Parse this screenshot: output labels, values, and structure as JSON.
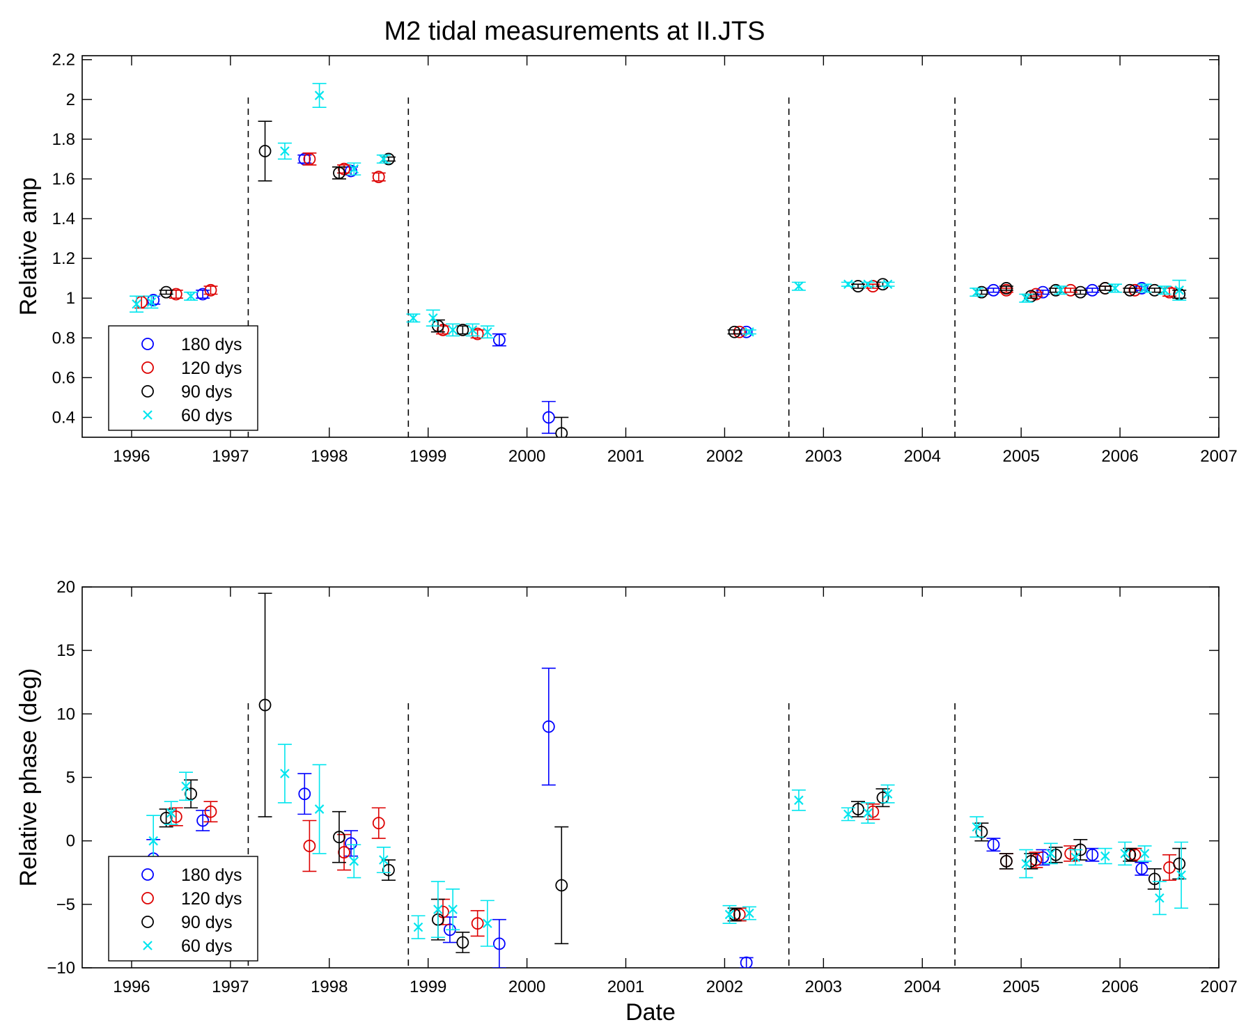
{
  "figure": {
    "title": "M2 tidal measurements at II.JTS"
  },
  "chart_data": [
    {
      "type": "scatter",
      "ylabel": "Relative amp",
      "xlabel": "",
      "xlim": [
        1995.5,
        2007
      ],
      "ylim": [
        0.3,
        2.22
      ],
      "x_ticks": [
        1996,
        1997,
        1998,
        1999,
        2000,
        2001,
        2002,
        2003,
        2004,
        2005,
        2006,
        2007
      ],
      "y_ticks": [
        0.4,
        0.6,
        0.8,
        1,
        1.2,
        1.4,
        1.6,
        1.8,
        2,
        2.2
      ],
      "y_tick_labels": [
        "0.4",
        "0.6",
        "0.8",
        "1",
        "1.2",
        "1.4",
        "1.6",
        "1.8",
        "2",
        "2.2"
      ],
      "dashed_lines_x": [
        1997.18,
        1998.8,
        2002.65,
        2004.33
      ],
      "legend": {
        "position": "bottom-left",
        "entries": [
          "180 dys",
          "120 dys",
          "90 dys",
          "60 dys"
        ]
      },
      "series": [
        {
          "name": "180 dys",
          "color": "#0000ff",
          "marker": "circle",
          "points": [
            [
              1996.22,
              0.99,
              0.02
            ],
            [
              1996.72,
              1.02,
              0.02
            ],
            [
              1997.75,
              1.7,
              0.02
            ],
            [
              1998.22,
              1.64,
              0.02
            ],
            [
              1999.72,
              0.79,
              0.03
            ],
            [
              2000.22,
              0.4,
              0.08
            ],
            [
              2002.22,
              0.83,
              0.01
            ],
            [
              2004.72,
              1.04,
              0.01
            ],
            [
              2005.22,
              1.03,
              0.01
            ],
            [
              2005.72,
              1.04,
              0.01
            ],
            [
              2006.22,
              1.05,
              0.01
            ]
          ]
        },
        {
          "name": "120 dys",
          "color": "#dd0000",
          "marker": "circle",
          "points": [
            [
              1996.1,
              0.98,
              0.03
            ],
            [
              1996.45,
              1.02,
              0.02
            ],
            [
              1996.8,
              1.04,
              0.02
            ],
            [
              1997.8,
              1.7,
              0.03
            ],
            [
              1998.15,
              1.65,
              0.02
            ],
            [
              1998.5,
              1.61,
              0.02
            ],
            [
              1999.15,
              0.84,
              0.02
            ],
            [
              1999.5,
              0.82,
              0.02
            ],
            [
              2002.15,
              0.83,
              0.01
            ],
            [
              2003.5,
              1.06,
              0.01
            ],
            [
              2004.85,
              1.04,
              0.01
            ],
            [
              2005.15,
              1.02,
              0.01
            ],
            [
              2005.5,
              1.04,
              0.01
            ],
            [
              2005.85,
              1.05,
              0.01
            ],
            [
              2006.15,
              1.04,
              0.01
            ],
            [
              2006.5,
              1.03,
              0.02
            ]
          ]
        },
        {
          "name": "90 dys",
          "color": "#000000",
          "marker": "circle",
          "points": [
            [
              1996.35,
              1.03,
              0.01
            ],
            [
              1997.35,
              1.74,
              0.15
            ],
            [
              1998.1,
              1.63,
              0.03
            ],
            [
              1998.6,
              1.7,
              0.01
            ],
            [
              1999.1,
              0.86,
              0.03
            ],
            [
              1999.35,
              0.84,
              0.02
            ],
            [
              2000.35,
              0.32,
              0.08
            ],
            [
              2002.1,
              0.83,
              0.01
            ],
            [
              2003.35,
              1.06,
              0.01
            ],
            [
              2003.6,
              1.07,
              0.01
            ],
            [
              2004.6,
              1.03,
              0.01
            ],
            [
              2004.85,
              1.05,
              0.01
            ],
            [
              2005.1,
              1.01,
              0.01
            ],
            [
              2005.35,
              1.04,
              0.01
            ],
            [
              2005.6,
              1.03,
              0.01
            ],
            [
              2005.85,
              1.05,
              0.01
            ],
            [
              2006.1,
              1.04,
              0.01
            ],
            [
              2006.35,
              1.04,
              0.01
            ],
            [
              2006.6,
              1.02,
              0.02
            ]
          ]
        },
        {
          "name": "60 dys",
          "color": "#00e5ee",
          "marker": "x",
          "points": [
            [
              1996.05,
              0.97,
              0.04
            ],
            [
              1996.2,
              0.98,
              0.03
            ],
            [
              1996.6,
              1.01,
              0.02
            ],
            [
              1997.55,
              1.74,
              0.04
            ],
            [
              1997.9,
              2.02,
              0.06
            ],
            [
              1998.25,
              1.65,
              0.03
            ],
            [
              1998.55,
              1.7,
              0.02
            ],
            [
              1998.85,
              0.9,
              0.02
            ],
            [
              1999.05,
              0.9,
              0.04
            ],
            [
              1999.25,
              0.84,
              0.03
            ],
            [
              1999.45,
              0.84,
              0.03
            ],
            [
              1999.6,
              0.83,
              0.03
            ],
            [
              2002.25,
              0.83,
              0.01
            ],
            [
              2002.75,
              1.06,
              0.02
            ],
            [
              2003.25,
              1.07,
              0.01
            ],
            [
              2003.45,
              1.07,
              0.01
            ],
            [
              2003.65,
              1.07,
              0.01
            ],
            [
              2004.55,
              1.03,
              0.02
            ],
            [
              2005.05,
              1.0,
              0.02
            ],
            [
              2005.4,
              1.04,
              0.02
            ],
            [
              2005.95,
              1.05,
              0.02
            ],
            [
              2006.25,
              1.05,
              0.02
            ],
            [
              2006.45,
              1.04,
              0.02
            ],
            [
              2006.6,
              1.04,
              0.05
            ]
          ]
        }
      ]
    },
    {
      "type": "scatter",
      "ylabel": "Relative phase (deg)",
      "xlabel": "Date",
      "xlim": [
        1995.5,
        2007
      ],
      "ylim": [
        -10,
        20
      ],
      "x_ticks": [
        1996,
        1997,
        1998,
        1999,
        2000,
        2001,
        2002,
        2003,
        2004,
        2005,
        2006,
        2007
      ],
      "y_ticks": [
        -10,
        -5,
        0,
        5,
        10,
        15,
        20
      ],
      "y_tick_labels": [
        "−10",
        "−5",
        "0",
        "5",
        "10",
        "15",
        "20"
      ],
      "dashed_lines_x": [
        1997.18,
        1998.8,
        2002.65,
        2004.33
      ],
      "legend": {
        "position": "bottom-left",
        "entries": [
          "180 dys",
          "120 dys",
          "90 dys",
          "60 dys"
        ]
      },
      "series": [
        {
          "name": "180 dys",
          "color": "#0000ff",
          "marker": "circle",
          "points": [
            [
              1996.22,
              -1.4,
              1.5
            ],
            [
              1996.72,
              1.6,
              0.8
            ],
            [
              1997.75,
              3.7,
              1.6
            ],
            [
              1998.22,
              -0.2,
              1.0
            ],
            [
              1999.22,
              -7.0,
              1.0
            ],
            [
              1999.72,
              -8.1,
              1.9
            ],
            [
              2000.22,
              9.0,
              4.6
            ],
            [
              2002.22,
              -9.6,
              0.4
            ],
            [
              2004.72,
              -0.3,
              0.5
            ],
            [
              2005.22,
              -1.3,
              0.6
            ],
            [
              2005.72,
              -1.1,
              0.5
            ],
            [
              2006.22,
              -2.2,
              0.5
            ]
          ]
        },
        {
          "name": "120 dys",
          "color": "#dd0000",
          "marker": "circle",
          "points": [
            [
              1996.45,
              1.9,
              0.7
            ],
            [
              1996.8,
              2.3,
              0.8
            ],
            [
              1997.8,
              -0.4,
              2.0
            ],
            [
              1998.15,
              -0.9,
              1.4
            ],
            [
              1998.5,
              1.4,
              1.2
            ],
            [
              1999.15,
              -5.6,
              1.0
            ],
            [
              1999.5,
              -6.5,
              1.0
            ],
            [
              2002.15,
              -5.8,
              0.5
            ],
            [
              2003.5,
              2.3,
              0.6
            ],
            [
              2004.85,
              -1.6,
              0.6
            ],
            [
              2005.15,
              -1.5,
              0.6
            ],
            [
              2005.5,
              -1.0,
              0.6
            ],
            [
              2006.15,
              -1.1,
              0.5
            ],
            [
              2006.5,
              -2.1,
              1.0
            ]
          ]
        },
        {
          "name": "90 dys",
          "color": "#000000",
          "marker": "circle",
          "points": [
            [
              1996.35,
              1.8,
              0.7
            ],
            [
              1996.6,
              3.7,
              1.1
            ],
            [
              1997.35,
              10.7,
              8.8
            ],
            [
              1998.1,
              0.3,
              2.0
            ],
            [
              1998.6,
              -2.3,
              0.8
            ],
            [
              1999.1,
              -6.2,
              1.6
            ],
            [
              1999.35,
              -8.0,
              0.8
            ],
            [
              2000.35,
              -3.5,
              4.6
            ],
            [
              2002.1,
              -5.8,
              0.5
            ],
            [
              2003.35,
              2.5,
              0.6
            ],
            [
              2003.6,
              3.4,
              0.7
            ],
            [
              2004.6,
              0.7,
              0.7
            ],
            [
              2004.85,
              -1.6,
              0.6
            ],
            [
              2005.1,
              -1.6,
              0.6
            ],
            [
              2005.35,
              -1.1,
              0.6
            ],
            [
              2005.6,
              -0.7,
              0.8
            ],
            [
              2006.1,
              -1.1,
              0.5
            ],
            [
              2006.35,
              -3.0,
              0.8
            ],
            [
              2006.6,
              -1.8,
              1.2
            ]
          ]
        },
        {
          "name": "60 dys",
          "color": "#00e5ee",
          "marker": "x",
          "points": [
            [
              1996.22,
              0.0,
              2.0
            ],
            [
              1996.4,
              2.2,
              0.9
            ],
            [
              1996.55,
              4.3,
              1.1
            ],
            [
              1997.55,
              5.3,
              2.3
            ],
            [
              1997.9,
              2.5,
              3.5
            ],
            [
              1998.25,
              -1.6,
              1.3
            ],
            [
              1998.55,
              -1.5,
              1.0
            ],
            [
              1998.9,
              -6.8,
              0.9
            ],
            [
              1999.1,
              -5.4,
              2.2
            ],
            [
              1999.25,
              -5.4,
              1.6
            ],
            [
              1999.6,
              -6.5,
              1.8
            ],
            [
              2002.05,
              -5.8,
              0.7
            ],
            [
              2002.25,
              -5.7,
              0.5
            ],
            [
              2002.75,
              3.2,
              0.8
            ],
            [
              2003.25,
              2.1,
              0.5
            ],
            [
              2003.45,
              2.2,
              0.8
            ],
            [
              2003.65,
              3.7,
              0.7
            ],
            [
              2004.55,
              1.1,
              0.8
            ],
            [
              2005.05,
              -1.8,
              1.1
            ],
            [
              2005.3,
              -1.0,
              0.8
            ],
            [
              2005.55,
              -1.3,
              0.6
            ],
            [
              2005.85,
              -1.2,
              0.6
            ],
            [
              2006.05,
              -1.0,
              0.9
            ],
            [
              2006.25,
              -1.0,
              0.6
            ],
            [
              2006.4,
              -4.5,
              1.3
            ],
            [
              2006.62,
              -2.7,
              2.6
            ]
          ]
        }
      ]
    }
  ]
}
